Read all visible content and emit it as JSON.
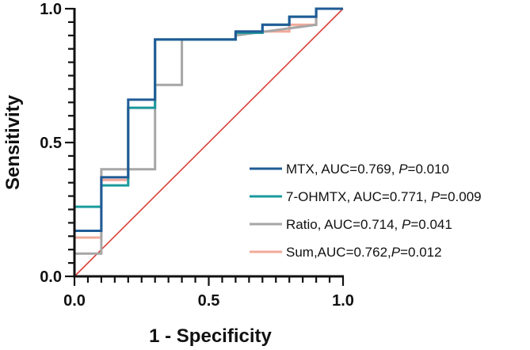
{
  "chart_data": {
    "type": "line",
    "title": "",
    "xlabel": "1 - Specificity",
    "ylabel": "Sensitivity",
    "xlim": [
      0,
      1
    ],
    "ylim": [
      0,
      1
    ],
    "x_ticks": [
      {
        "value": 0,
        "label": "0.0"
      },
      {
        "value": 0.5,
        "label": "0.5"
      },
      {
        "value": 1,
        "label": "1.0"
      }
    ],
    "y_ticks": [
      {
        "value": 0,
        "label": "0.0"
      },
      {
        "value": 0.5,
        "label": "0.5"
      },
      {
        "value": 1,
        "label": "1.0"
      }
    ],
    "minor_tick_step": 0.05,
    "grid": false,
    "legend_position": "bottom-right",
    "reference_line": {
      "x": [
        0,
        1
      ],
      "y": [
        0,
        1
      ],
      "color": "#d9413a"
    },
    "series": [
      {
        "name": "MTX",
        "auc": "0.769",
        "p": "0.010",
        "label_parts": [
          "MTX, AUC=0.769, ",
          "P",
          "=0.010"
        ],
        "color": "#1f5b96",
        "x": [
          0,
          0,
          0.1,
          0.1,
          0.2,
          0.2,
          0.3,
          0.3,
          0.6,
          0.6,
          0.7,
          0.7,
          0.8,
          0.8,
          0.9,
          0.9,
          1.0
        ],
        "y": [
          0,
          0.17,
          0.17,
          0.37,
          0.37,
          0.66,
          0.66,
          0.885,
          0.885,
          0.915,
          0.915,
          0.94,
          0.94,
          0.97,
          0.97,
          1.0,
          1.0
        ]
      },
      {
        "name": "7-OHMTX",
        "auc": "0.771",
        "p": "0.009",
        "label_parts": [
          "7-OHMTX, AUC=0.771, ",
          "P",
          "=0.009"
        ],
        "color": "#1a9a9d",
        "x": [
          0,
          0,
          0.1,
          0.1,
          0.2,
          0.2,
          0.3,
          0.3,
          0.6,
          0.6,
          0.7,
          0.7,
          0.8,
          0.8,
          0.9,
          0.9,
          1.0
        ],
        "y": [
          0,
          0.26,
          0.26,
          0.34,
          0.34,
          0.63,
          0.63,
          0.885,
          0.885,
          0.91,
          0.91,
          0.94,
          0.94,
          0.97,
          0.97,
          1.0,
          1.0
        ]
      },
      {
        "name": "Ratio",
        "auc": "0.714",
        "p": "0.041",
        "label_parts": [
          "Ratio, AUC=0.714, ",
          "P",
          "=0.041"
        ],
        "color": "#a6a6a6",
        "x": [
          0,
          0,
          0.1,
          0.1,
          0.3,
          0.3,
          0.4,
          0.4,
          0.6,
          0.6,
          0.9,
          0.9,
          1.0
        ],
        "y": [
          0,
          0.085,
          0.085,
          0.4,
          0.4,
          0.715,
          0.715,
          0.885,
          0.885,
          0.9,
          0.94,
          1.0,
          1.0
        ]
      },
      {
        "name": "Sum",
        "auc": "0.762",
        "p": "0.012",
        "label_parts": [
          "Sum,AUC=0.762,",
          "P",
          "=0.012"
        ],
        "color": "#f2a99a",
        "x": [
          0,
          0,
          0.1,
          0.1,
          0.2,
          0.2,
          0.3,
          0.3,
          0.6,
          0.6,
          0.7,
          0.7,
          0.8,
          0.8,
          0.9,
          0.9,
          1.0
        ],
        "y": [
          0,
          0.145,
          0.145,
          0.36,
          0.36,
          0.63,
          0.63,
          0.885,
          0.885,
          0.91,
          0.91,
          0.915,
          0.915,
          0.94,
          0.94,
          1.0,
          1.0
        ]
      }
    ]
  }
}
